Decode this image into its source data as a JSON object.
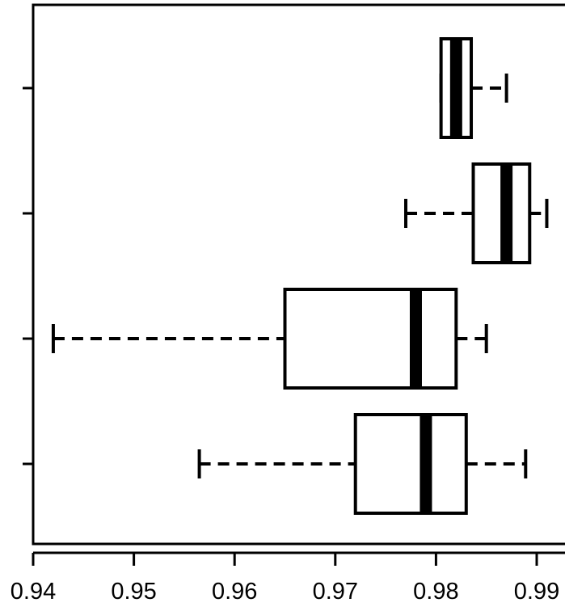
{
  "chart_data": {
    "type": "boxplot",
    "orientation": "horizontal",
    "grid": false,
    "legend": "none",
    "xlim": [
      0.94,
      0.99
    ],
    "x_ticks": [
      "0.94",
      "0.95",
      "0.96",
      "0.97",
      "0.98",
      "0.99"
    ],
    "x_tick_values": [
      0.94,
      0.95,
      0.96,
      0.97,
      0.98,
      0.99
    ],
    "boxes": [
      {
        "whisker_low": 0.9565,
        "q1": 0.972,
        "median": 0.979,
        "q3": 0.983,
        "whisker_high": 0.9889
      },
      {
        "whisker_low": 0.942,
        "q1": 0.965,
        "median": 0.978,
        "q3": 0.982,
        "whisker_high": 0.985
      },
      {
        "whisker_low": 0.977,
        "q1": 0.9837,
        "median": 0.987,
        "q3": 0.9893,
        "whisker_high": 0.991
      },
      {
        "whisker_low": 0.9805,
        "q1": 0.9805,
        "median": 0.982,
        "q3": 0.9835,
        "whisker_high": 0.987
      }
    ],
    "colors": {
      "stroke": "#000000",
      "fill": "#ffffff",
      "background": "#ffffff"
    }
  }
}
